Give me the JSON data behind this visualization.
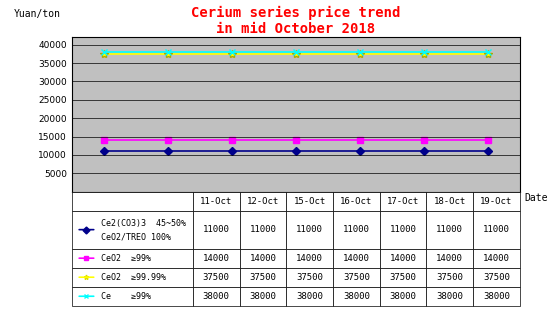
{
  "title": "Cerium series price trend\nin mid October 2018",
  "title_color": "#FF0000",
  "ylabel": "Yuan/ton",
  "xlabel": "Date",
  "background_color": "#C0C0C0",
  "fig_background": "#FFFFFF",
  "dates": [
    "11-Oct",
    "12-Oct",
    "15-Oct",
    "16-Oct",
    "17-Oct",
    "18-Oct",
    "19-Oct"
  ],
  "series": [
    {
      "label": "Ce2(CO3)3  45~50%\nCeO2/TREO 100%",
      "values": [
        11000,
        11000,
        11000,
        11000,
        11000,
        11000,
        11000
      ],
      "color": "#00008B",
      "marker": "D",
      "linestyle": "-",
      "linewidth": 1.2,
      "markersize": 4
    },
    {
      "label": "CeO2  ≥99%",
      "values": [
        14000,
        14000,
        14000,
        14000,
        14000,
        14000,
        14000
      ],
      "color": "#FF00FF",
      "marker": "s",
      "linestyle": "-",
      "linewidth": 1.2,
      "markersize": 4
    },
    {
      "label": "CeO2  ≥99.99%",
      "values": [
        37500,
        37500,
        37500,
        37500,
        37500,
        37500,
        37500
      ],
      "color": "#FFFF00",
      "marker": "*",
      "linestyle": "-",
      "linewidth": 1.2,
      "markersize": 6
    },
    {
      "label": "Ce    ≥99%",
      "values": [
        38000,
        38000,
        38000,
        38000,
        38000,
        38000,
        38000
      ],
      "color": "#00FFFF",
      "marker": "x",
      "linestyle": "-",
      "linewidth": 1.2,
      "markersize": 5
    }
  ],
  "ylim": [
    0,
    42000
  ],
  "yticks": [
    0,
    5000,
    10000,
    15000,
    20000,
    25000,
    30000,
    35000,
    40000
  ],
  "table_data": [
    [
      "11000",
      "11000",
      "11000",
      "11000",
      "11000",
      "11000",
      "11000"
    ],
    [
      "14000",
      "14000",
      "14000",
      "14000",
      "14000",
      "14000",
      "14000"
    ],
    [
      "37500",
      "37500",
      "37500",
      "37500",
      "37500",
      "37500",
      "37500"
    ],
    [
      "38000",
      "38000",
      "38000",
      "38000",
      "38000",
      "38000",
      "38000"
    ]
  ],
  "table_row_labels": [
    "Ce2(CO3)3  45~50%\nCeO2/TREO 100%",
    "CeO2  ≥99%",
    "CeO2  ≥99.99%",
    "Ce    ≥99%"
  ],
  "table_row_colors": [
    "#00008B",
    "#FF00FF",
    "#FFFF00",
    "#00FFFF"
  ],
  "table_row_markers": [
    "D",
    "s",
    "*",
    "x"
  ]
}
